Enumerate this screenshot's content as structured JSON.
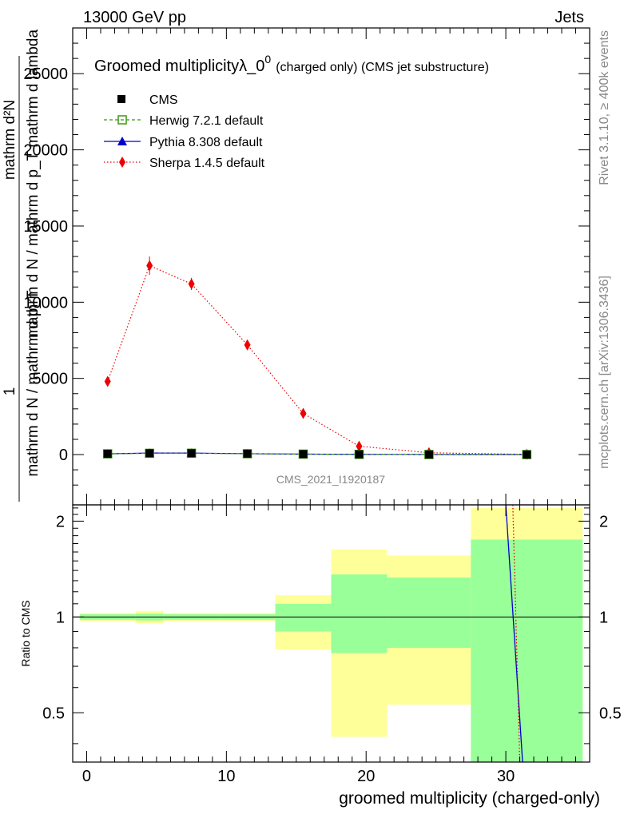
{
  "header": {
    "left": "13000 GeV pp",
    "right": "Jets"
  },
  "side": {
    "rivet": "Rivet 3.1.10, ≥ 400k events",
    "mcplots": "mcplots.cern.ch [arXiv:1306.3436]"
  },
  "colors": {
    "cms": "#000000",
    "herwig": "#3a9a0f",
    "pythia": "#0000cc",
    "sherpa": "#ee0000",
    "band_outer": "#ffff99",
    "band_inner": "#99ff99",
    "watermark": "#888888"
  },
  "chart_data": [
    {
      "type": "scatter",
      "title": "Groomed multiplicityλ_0",
      "title_sup": "0",
      "title_suffix": "(charged only) (CMS jet substructure)",
      "watermark": "CMS_2021_I1920187",
      "ylabel_main": "mathrm d N / mathrm d p_T mathrm d lambda",
      "ylabel_num": "mathrm d²N",
      "ylabel_prefactor": "1",
      "ylabel_den": "mathrm d N / mathrm d p_T",
      "xlim": [
        -1,
        36
      ],
      "ylim": [
        -3300,
        28000
      ],
      "yticks": [
        0,
        5000,
        10000,
        15000,
        20000,
        25000
      ],
      "ytick_labels": [
        "0",
        "5000",
        "10000",
        "15000",
        "20000",
        "25000"
      ],
      "bins": [
        [
          -0.5,
          3.5
        ],
        [
          3.5,
          5.5
        ],
        [
          5.5,
          9.5
        ],
        [
          9.5,
          13.5
        ],
        [
          13.5,
          17.5
        ],
        [
          17.5,
          21.5
        ],
        [
          21.5,
          27.5
        ],
        [
          27.5,
          35.5
        ]
      ],
      "x": [
        1.5,
        4.5,
        7.5,
        11.5,
        15.5,
        19.5,
        24.5,
        31.5
      ],
      "legend": [
        "CMS",
        "Herwig 7.2.1 default",
        "Pythia 8.308 default",
        "Sherpa 1.4.5 default"
      ],
      "series": [
        {
          "name": "CMS",
          "values": [
            50,
            90,
            90,
            60,
            30,
            15,
            5,
            2
          ]
        },
        {
          "name": "Herwig 7.2.1 default",
          "values": [
            50,
            85,
            90,
            55,
            30,
            15,
            5,
            2
          ]
        },
        {
          "name": "Pythia 8.308 default",
          "values": [
            50,
            100,
            100,
            60,
            30,
            15,
            4,
            1
          ]
        },
        {
          "name": "Sherpa 1.4.5 default",
          "values": [
            4800,
            12400,
            11200,
            7200,
            2700,
            550,
            120,
            15
          ],
          "errors": [
            150,
            600,
            400,
            250,
            100,
            40,
            20,
            5
          ]
        }
      ]
    },
    {
      "type": "line",
      "ylabel": "Ratio to CMS",
      "xlabel": "groomed multiplicity (charged-only)",
      "xlim": [
        -1,
        36
      ],
      "ylim": [
        0.35,
        2.25
      ],
      "yticks": [
        0.5,
        1,
        2
      ],
      "ytick_labels": [
        "0.5",
        "1",
        "2"
      ],
      "xticks": [
        0,
        10,
        20,
        30
      ],
      "xtick_labels": [
        "0",
        "10",
        "20",
        "30"
      ],
      "bands": [
        {
          "xlo": -0.5,
          "xhi": 3.5,
          "outer": [
            0.97,
            1.03
          ],
          "inner": [
            0.98,
            1.02
          ]
        },
        {
          "xlo": 3.5,
          "xhi": 5.5,
          "outer": [
            0.955,
            1.045
          ],
          "inner": [
            0.975,
            1.025
          ]
        },
        {
          "xlo": 5.5,
          "xhi": 9.5,
          "outer": [
            0.97,
            1.03
          ],
          "inner": [
            0.98,
            1.02
          ]
        },
        {
          "xlo": 9.5,
          "xhi": 13.5,
          "outer": [
            0.97,
            1.03
          ],
          "inner": [
            0.98,
            1.02
          ]
        },
        {
          "xlo": 13.5,
          "xhi": 17.5,
          "outer": [
            0.79,
            1.17
          ],
          "inner": [
            0.9,
            1.1
          ]
        },
        {
          "xlo": 17.5,
          "xhi": 21.5,
          "outer": [
            0.42,
            1.63
          ],
          "inner": [
            0.77,
            1.36
          ]
        },
        {
          "xlo": 21.5,
          "xhi": 27.5,
          "outer": [
            0.53,
            1.56
          ],
          "inner": [
            0.8,
            1.33
          ]
        },
        {
          "xlo": 27.5,
          "xhi": 35.5,
          "outer": [
            0.35,
            2.2
          ],
          "inner": [
            0.35,
            1.75
          ]
        }
      ],
      "lines": [
        {
          "name": "Pythia 8.308 default",
          "x": [
            30.0,
            31.2
          ],
          "y": [
            2.25,
            0.35
          ]
        },
        {
          "name": "Sherpa 1.4.5 default",
          "x": [
            30.5,
            31.0
          ],
          "y": [
            2.25,
            0.35
          ]
        }
      ]
    }
  ]
}
